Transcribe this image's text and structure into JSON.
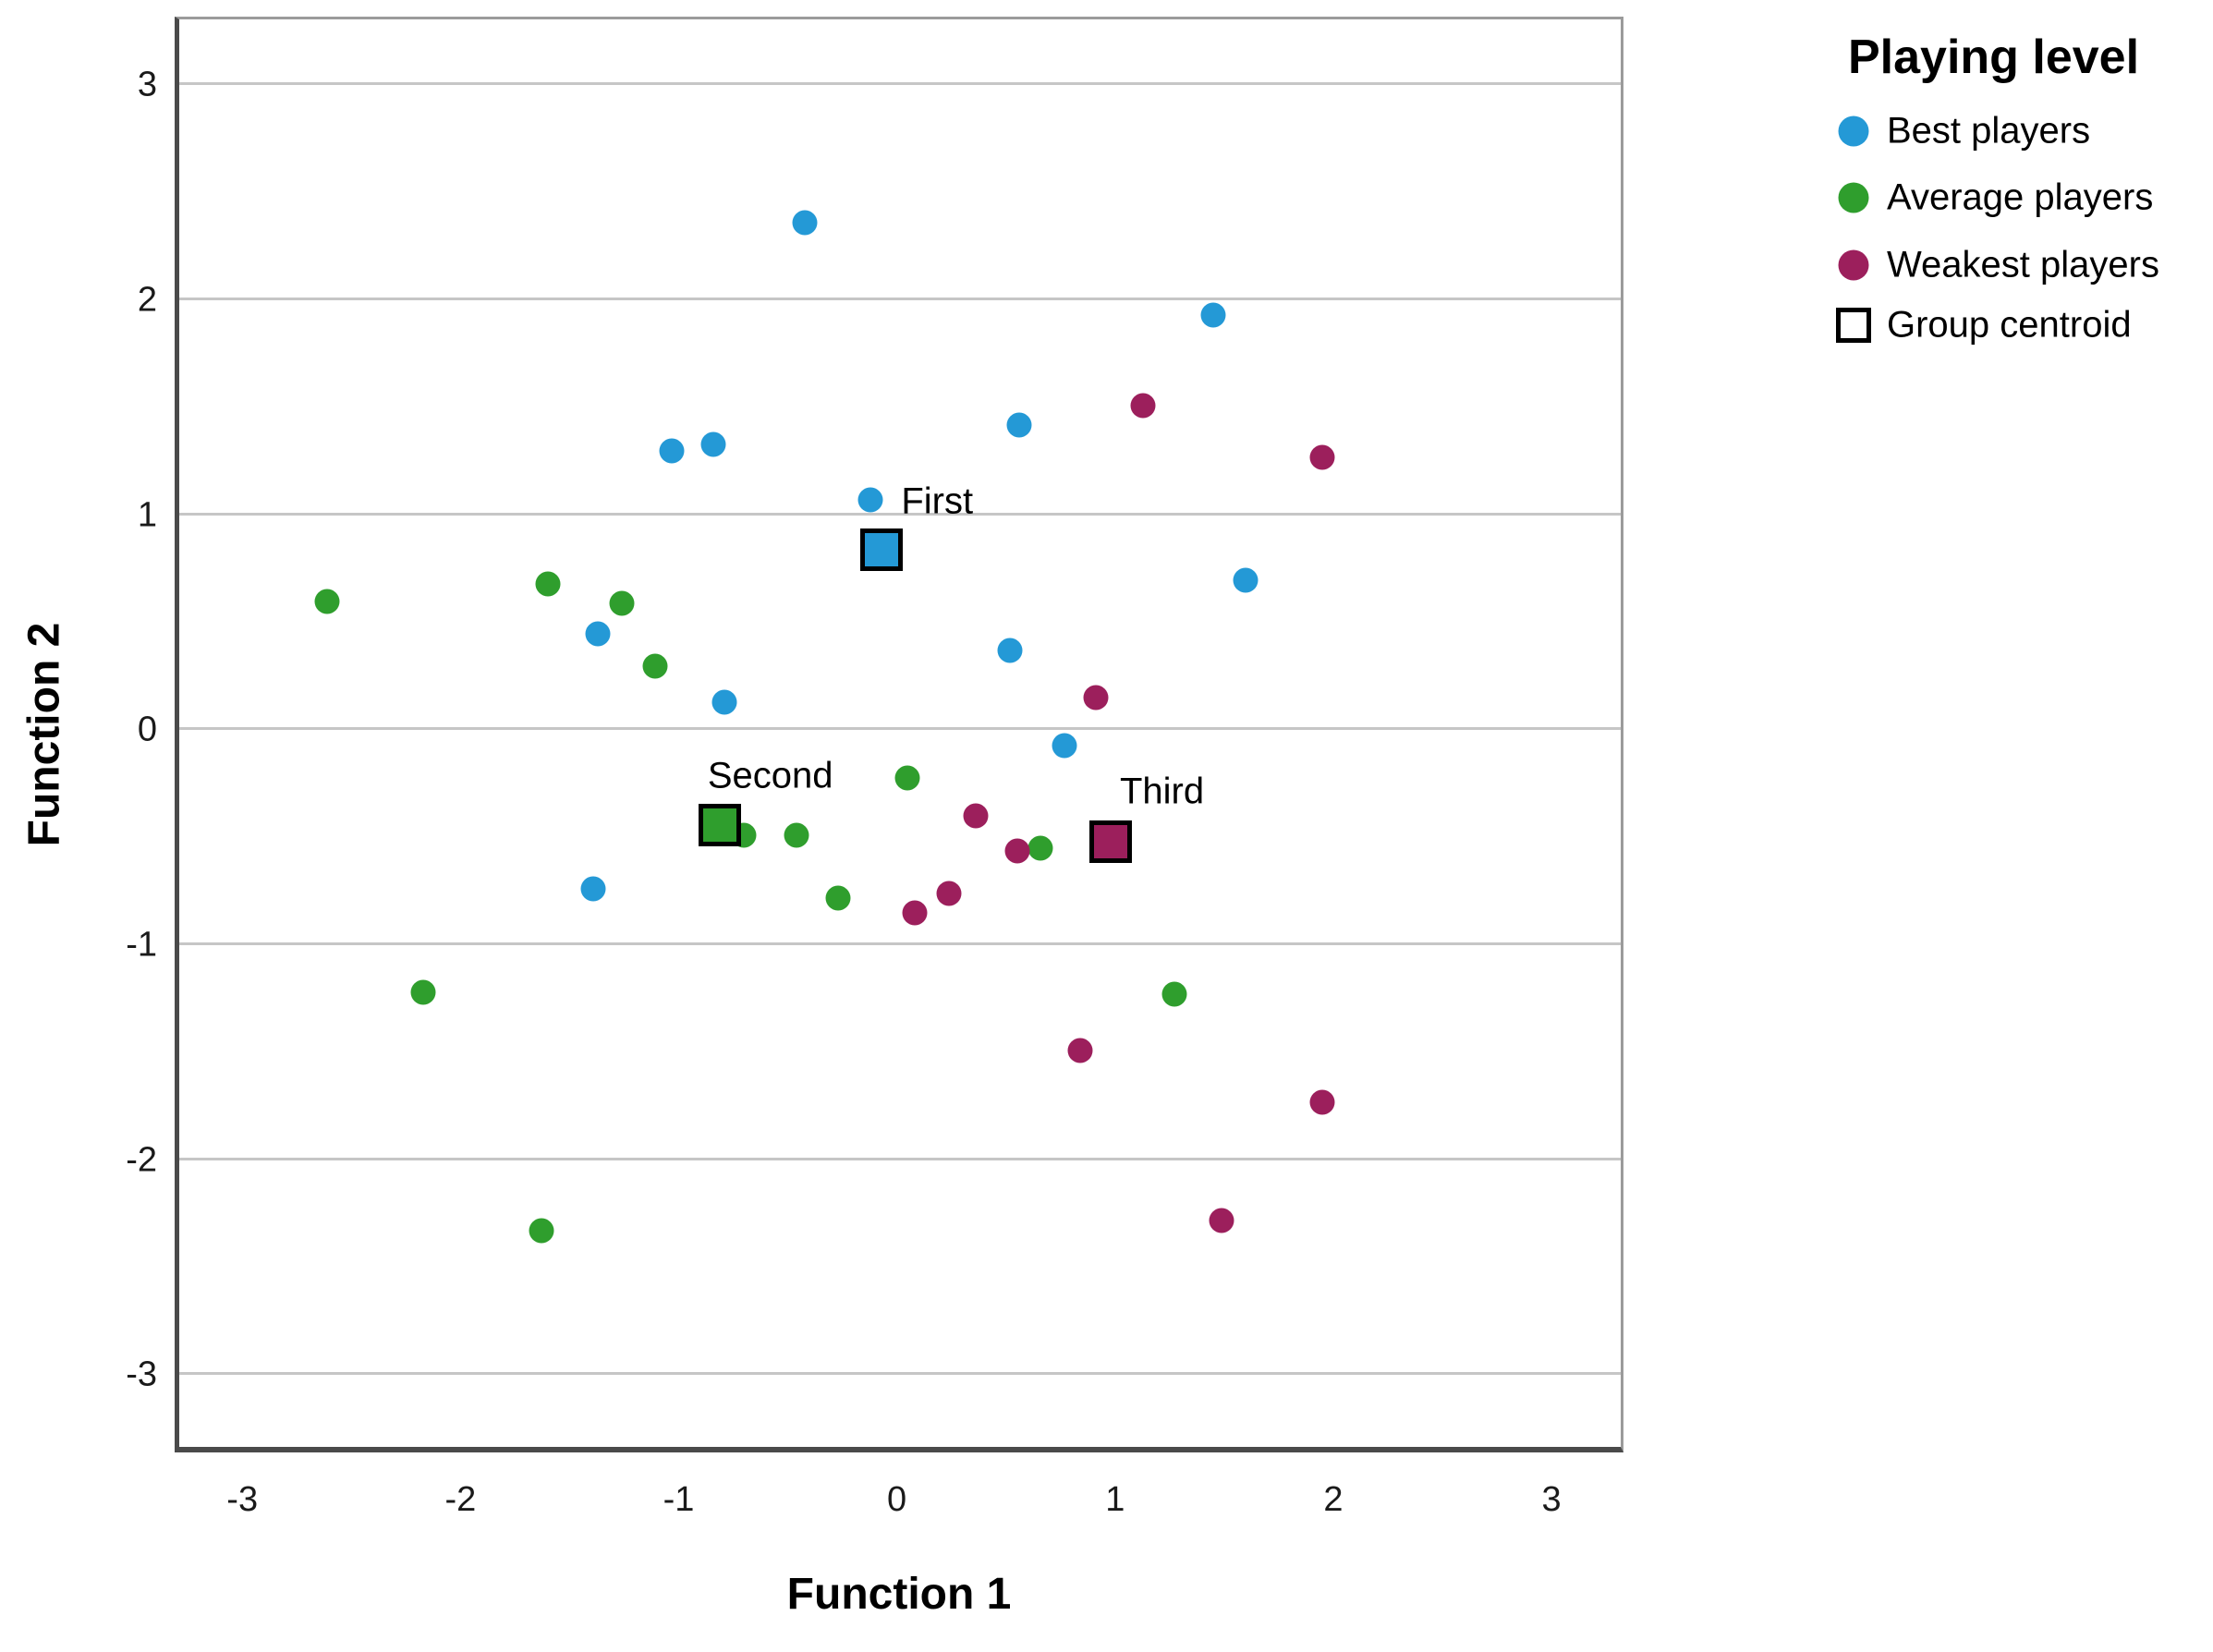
{
  "legend": {
    "title": "Playing level",
    "items": [
      {
        "label": "Best players",
        "marker": "circle",
        "color": "#2499d6"
      },
      {
        "label": "Average players",
        "marker": "circle",
        "color": "#2f9e2d"
      },
      {
        "label": "Weakest players",
        "marker": "circle",
        "color": "#9c1f5c"
      },
      {
        "label": "Group centroid",
        "marker": "square-outline",
        "color": "#ffffff"
      }
    ]
  },
  "chart_data": {
    "type": "scatter",
    "title": "",
    "xlabel": "Function 1",
    "ylabel": "Function 2",
    "xlim": [
      -3.31,
      3.33
    ],
    "ylim": [
      -3.36,
      3.32
    ],
    "xticks": [
      -3,
      -2,
      -1,
      0,
      1,
      2,
      3
    ],
    "yticks": [
      -3,
      -2,
      -1,
      0,
      1,
      2,
      3
    ],
    "grid": "horizontal-only",
    "grid_color": "#c6c6c6",
    "legend_position": "top-right",
    "series": [
      {
        "name": "Best players",
        "color": "#2499d6",
        "marker": "circle",
        "points": [
          {
            "x": -0.42,
            "y": 2.36
          },
          {
            "x": 1.45,
            "y": 1.93
          },
          {
            "x": -1.03,
            "y": 1.3
          },
          {
            "x": -0.84,
            "y": 1.33
          },
          {
            "x": 0.56,
            "y": 1.42
          },
          {
            "x": -0.12,
            "y": 1.07
          },
          {
            "x": 1.6,
            "y": 0.7
          },
          {
            "x": -1.37,
            "y": 0.45
          },
          {
            "x": -0.79,
            "y": 0.13
          },
          {
            "x": 0.52,
            "y": 0.37
          },
          {
            "x": 0.77,
            "y": -0.07
          },
          {
            "x": -1.39,
            "y": -0.74
          }
        ]
      },
      {
        "name": "Average players",
        "color": "#2f9e2d",
        "marker": "circle",
        "points": [
          {
            "x": -2.61,
            "y": 0.6
          },
          {
            "x": -1.6,
            "y": 0.68
          },
          {
            "x": -1.26,
            "y": 0.59
          },
          {
            "x": -1.11,
            "y": 0.3
          },
          {
            "x": 0.05,
            "y": -0.22
          },
          {
            "x": -0.7,
            "y": -0.49
          },
          {
            "x": -0.46,
            "y": -0.49
          },
          {
            "x": 0.66,
            "y": -0.55
          },
          {
            "x": -0.27,
            "y": -0.78
          },
          {
            "x": -2.17,
            "y": -1.22
          },
          {
            "x": 1.27,
            "y": -1.23
          },
          {
            "x": -1.63,
            "y": -2.33
          }
        ]
      },
      {
        "name": "Weakest players",
        "color": "#9c1f5c",
        "marker": "circle",
        "points": [
          {
            "x": 1.13,
            "y": 1.51
          },
          {
            "x": 1.95,
            "y": 1.27
          },
          {
            "x": 0.91,
            "y": 0.15
          },
          {
            "x": 0.36,
            "y": -0.4
          },
          {
            "x": 0.55,
            "y": -0.56
          },
          {
            "x": 0.24,
            "y": -0.76
          },
          {
            "x": 0.08,
            "y": -0.85
          },
          {
            "x": 0.84,
            "y": -1.49
          },
          {
            "x": 1.95,
            "y": -1.73
          },
          {
            "x": 1.49,
            "y": -2.28
          }
        ]
      }
    ],
    "centroids": [
      {
        "name": "First",
        "color": "#2499d6",
        "x": -0.07,
        "y": 0.84
      },
      {
        "name": "Second",
        "color": "#2f9e2d",
        "x": -0.81,
        "y": -0.44
      },
      {
        "name": "Third",
        "color": "#9c1f5c",
        "x": 0.98,
        "y": -0.52
      }
    ],
    "point_labels": [
      {
        "text": "First",
        "x": 0.02,
        "y": 1.065,
        "anchor": "start"
      },
      {
        "text": "Second",
        "x": -0.58,
        "y": -0.215,
        "anchor": "middle"
      },
      {
        "text": "Third",
        "x": 1.215,
        "y": -0.285,
        "anchor": "middle"
      }
    ]
  }
}
